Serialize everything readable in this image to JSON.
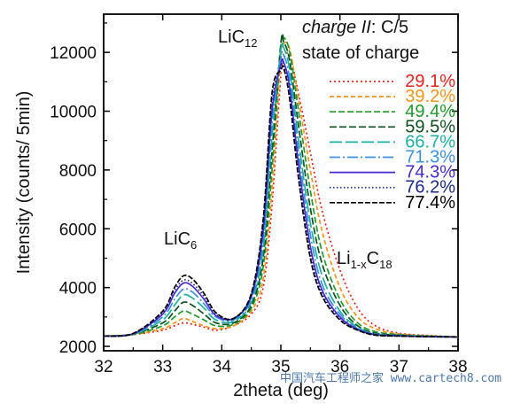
{
  "chart_data": {
    "type": "line",
    "xlabel": "2theta (deg)",
    "ylabel": "Intensity (counts/ 5min)",
    "xlim": [
      32,
      38
    ],
    "ylim": [
      1850,
      13300
    ],
    "xticks": [
      32,
      33,
      34,
      35,
      36,
      37,
      38
    ],
    "yticks": [
      2000,
      4000,
      6000,
      8000,
      10000,
      12000
    ],
    "xtick_labels": [
      "32",
      "33",
      "34",
      "35",
      "36",
      "37",
      "38"
    ],
    "ytick_labels": [
      "2000",
      "4000",
      "6000",
      "8000",
      "10000",
      "12000"
    ],
    "grid": false,
    "legend_position": "top-right",
    "legend_title_italic": "charge II",
    "legend_title_rest": ": C/5",
    "legend_subtitle": "state of charge",
    "annotations": {
      "lic12_base": "LiC",
      "lic12_sub": "12",
      "lic6_base": "LiC",
      "lic6_sub": "6",
      "li1x_a": "Li",
      "li1x_sub1": "1-x",
      "li1x_b": "C",
      "li1x_sub2": "18"
    },
    "x": [
      32.0,
      32.5,
      33.0,
      33.2,
      33.35,
      33.5,
      33.7,
      33.9,
      34.2,
      34.5,
      34.7,
      34.85,
      35.0,
      35.05,
      35.15,
      35.3,
      35.5,
      35.7,
      36.0,
      36.3,
      36.6,
      37.0,
      37.5,
      38.0
    ],
    "series": [
      {
        "name": "29.1%",
        "color": "#e8201c",
        "dash": "2,3",
        "values": [
          2350,
          2400,
          2550,
          2700,
          2800,
          2750,
          2650,
          2550,
          2700,
          3100,
          4000,
          6800,
          11200,
          11800,
          11900,
          10600,
          8600,
          6600,
          4600,
          3300,
          2700,
          2450,
          2370,
          2320
        ]
      },
      {
        "name": "39.2%",
        "color": "#f39419",
        "dash": "5,3",
        "values": [
          2350,
          2400,
          2600,
          2800,
          2950,
          2850,
          2700,
          2600,
          2700,
          3200,
          4300,
          7300,
          11800,
          12300,
          12100,
          10400,
          8000,
          5900,
          4000,
          3000,
          2600,
          2420,
          2360,
          2320
        ]
      },
      {
        "name": "49.4%",
        "color": "#1f9a2e",
        "dash": "7,3",
        "values": [
          2350,
          2400,
          2700,
          3000,
          3200,
          3100,
          2900,
          2700,
          2750,
          3300,
          4700,
          8000,
          12200,
          12500,
          12000,
          10000,
          7300,
          5200,
          3600,
          2800,
          2500,
          2400,
          2350,
          2320
        ]
      },
      {
        "name": "59.5%",
        "color": "#0d4f1d",
        "dash": "8,3",
        "values": [
          2350,
          2420,
          2800,
          3200,
          3500,
          3400,
          3100,
          2800,
          2800,
          3400,
          5000,
          8600,
          12300,
          12350,
          11700,
          9500,
          6700,
          4800,
          3400,
          2700,
          2450,
          2380,
          2340,
          2320
        ]
      },
      {
        "name": "66.7%",
        "color": "#1ab0a4",
        "dash": "14,4",
        "values": [
          2350,
          2420,
          2900,
          3400,
          3750,
          3650,
          3300,
          2900,
          2850,
          3500,
          5300,
          9100,
          12100,
          12150,
          11400,
          9000,
          6200,
          4400,
          3200,
          2650,
          2420,
          2370,
          2340,
          2320
        ]
      },
      {
        "name": "71.3%",
        "color": "#3c8fe0",
        "dash": "12,3,2,3",
        "values": [
          2350,
          2420,
          3000,
          3600,
          3950,
          3850,
          3450,
          3000,
          2900,
          3600,
          5600,
          9600,
          11800,
          11900,
          11100,
          8600,
          5800,
          4100,
          3100,
          2600,
          2400,
          2360,
          2330,
          2320
        ]
      },
      {
        "name": "74.3%",
        "color": "#4a28d0",
        "dash": "",
        "values": [
          2350,
          2430,
          3100,
          3800,
          4150,
          4050,
          3600,
          3050,
          2950,
          3700,
          5900,
          10000,
          11600,
          11650,
          10800,
          8200,
          5400,
          3900,
          3000,
          2580,
          2400,
          2360,
          2330,
          2320
        ]
      },
      {
        "name": "76.2%",
        "color": "#1a2a8a",
        "dash": "1.5,2.5",
        "values": [
          2350,
          2430,
          3150,
          3900,
          4250,
          4150,
          3700,
          3100,
          2950,
          3750,
          6100,
          10300,
          11500,
          11550,
          10600,
          7900,
          5200,
          3800,
          2950,
          2560,
          2390,
          2350,
          2330,
          2320
        ]
      },
      {
        "name": "77.4%",
        "color": "#000000",
        "dash": "6,2",
        "values": [
          2350,
          2440,
          3200,
          4000,
          4400,
          4300,
          3800,
          3150,
          2950,
          3800,
          6300,
          10600,
          11400,
          11450,
          10400,
          7700,
          5000,
          3700,
          2900,
          2550,
          2380,
          2350,
          2330,
          2320
        ]
      }
    ]
  },
  "watermark": "中国汽车工程师之家 www.cartech8.com"
}
